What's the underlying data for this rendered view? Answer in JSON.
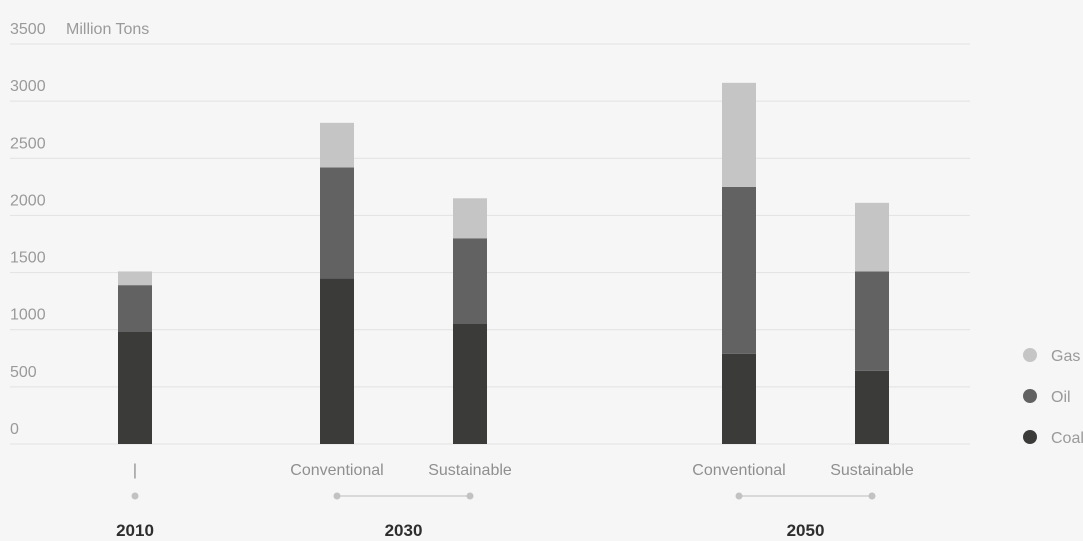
{
  "chart_data": {
    "type": "bar",
    "stacked": true,
    "ylabel": "Million Tons",
    "ylim": [
      0,
      3500
    ],
    "yticks": [
      0,
      500,
      1000,
      1500,
      2000,
      2500,
      3000,
      3500
    ],
    "grid": true,
    "legend_position": "right",
    "groups": [
      {
        "label": "2010",
        "categories": [
          "|"
        ]
      },
      {
        "label": "2030",
        "categories": [
          "Conventional",
          "Sustainable"
        ]
      },
      {
        "label": "2050",
        "categories": [
          "Conventional",
          "Sustainable"
        ]
      }
    ],
    "categories": [
      "|",
      "Conventional",
      "Sustainable",
      "Conventional",
      "Sustainable"
    ],
    "series": [
      {
        "name": "Coal",
        "color": "#3b3b39",
        "values": [
          980,
          1450,
          1050,
          790,
          640
        ]
      },
      {
        "name": "Oil",
        "color": "#626262",
        "values": [
          410,
          970,
          750,
          1460,
          870
        ]
      },
      {
        "name": "Gas",
        "color": "#c5c5c5",
        "values": [
          120,
          390,
          350,
          910,
          600
        ]
      }
    ],
    "legend": [
      {
        "name": "Gas",
        "color": "#c5c5c5"
      },
      {
        "name": "Oil",
        "color": "#626262"
      },
      {
        "name": "Coal",
        "color": "#3b3b39"
      }
    ]
  }
}
